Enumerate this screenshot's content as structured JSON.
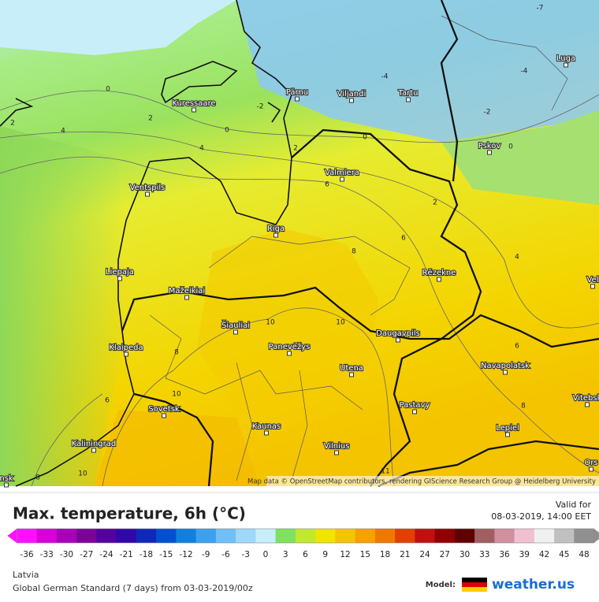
{
  "map": {
    "cities": [
      "Kuressaare",
      "Pärnu",
      "Viljandi",
      "Tartu",
      "Luga",
      "Pskov",
      "Valmiera",
      "Ventspils",
      "Riga",
      "Liepaja",
      "Mažeikiai",
      "Rēzekne",
      "Šiauliai",
      "Panevėžys",
      "Daugavpils",
      "Klaipeda",
      "Utena",
      "Navapolatsk",
      "Vitebsk",
      "Sovetsk",
      "Pastavy",
      "Kaunas",
      "Lepiel",
      "Kaliningrad",
      "Vilnius",
      "Ors",
      "nsk",
      "Vel"
    ],
    "contour_labels": [
      -7,
      -4,
      -4,
      -2,
      -2,
      0,
      0,
      0,
      0,
      2,
      2,
      2,
      2,
      4,
      4,
      4,
      6,
      6,
      6,
      6,
      8,
      8,
      8,
      10,
      10,
      10,
      10,
      8,
      11
    ],
    "attribution": "Map data © OpenStreetMap contributors, rendering GIScience Research Group @ Heidelberg University"
  },
  "legend": {
    "title": "Max. temperature, 6h (°C)",
    "valid_label": "Valid for",
    "valid_time": "08-03-2019, 14:00 EET",
    "ticks": [
      -36,
      -33,
      -30,
      -27,
      -24,
      -21,
      -18,
      -15,
      -12,
      -9,
      -6,
      -3,
      0,
      3,
      6,
      9,
      12,
      15,
      18,
      21,
      24,
      27,
      30,
      33,
      36,
      39,
      42,
      45,
      48
    ],
    "colors": [
      "#ff10ff",
      "#d800d8",
      "#a800b8",
      "#7c0098",
      "#5400a0",
      "#3008a8",
      "#1028b8",
      "#0050d0",
      "#1080e0",
      "#3ca0f0",
      "#70c0f8",
      "#a0d8fa",
      "#c8eefa",
      "#80e060",
      "#c0e830",
      "#f0e400",
      "#f5c400",
      "#f8a000",
      "#f07800",
      "#e04000",
      "#c01010",
      "#900000",
      "#600000",
      "#a06060",
      "#d090a0",
      "#f0c0d0",
      "#f0f0f0",
      "#c0c0c0",
      "#909090"
    ]
  },
  "footer": {
    "region": "Latvia",
    "model_run": "Global German Standard (7 days) from 03-03-2019/00z",
    "model_label": "Model:",
    "brand": "weather.us"
  }
}
